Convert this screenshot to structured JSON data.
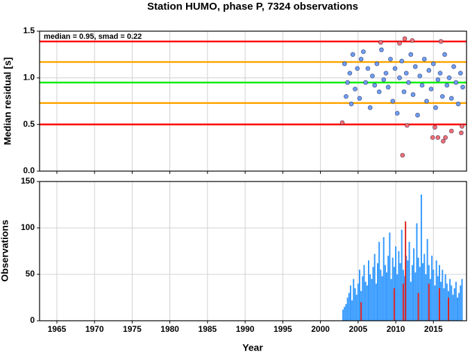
{
  "chart_data": [
    {
      "type": "scatter",
      "title": "Station HUMO, phase P, 7324 observations",
      "ylabel": "Median residual [s]",
      "annotation": "median = 0.95, smad = 0.22",
      "xlim": [
        1962.7,
        2019.4
      ],
      "ylim": [
        0,
        1.5
      ],
      "yticks": [
        {
          "value": 0,
          "label": "0.0"
        },
        {
          "value": 0.5,
          "label": "0.5"
        },
        {
          "value": 1.0,
          "label": "1.0"
        },
        {
          "value": 1.5,
          "label": "1.5"
        }
      ],
      "grid": true,
      "hlines": [
        {
          "value": 1.39,
          "color": "#ff0000"
        },
        {
          "value": 1.17,
          "color": "#ffa500"
        },
        {
          "value": 0.95,
          "color": "#00ee00"
        },
        {
          "value": 0.73,
          "color": "#ffa500"
        },
        {
          "value": 0.5,
          "color": "#ff0000"
        }
      ],
      "series": [
        {
          "color": "#6f9ff2",
          "x": [
            2003.2,
            2003.4,
            2003.6,
            2003.9,
            2004.1,
            2004.3,
            2004.6,
            2004.9,
            2005.2,
            2005.4,
            2005.7,
            2006.0,
            2006.3,
            2006.6,
            2006.9,
            2007.2,
            2007.5,
            2007.8,
            2008.1,
            2008.4,
            2008.7,
            2009.0,
            2009.3,
            2009.6,
            2009.9,
            2010.2,
            2010.5,
            2010.8,
            2011.1,
            2011.4,
            2011.7,
            2012.0,
            2012.3,
            2012.6,
            2012.9,
            2013.2,
            2013.5,
            2013.8,
            2014.1,
            2014.4,
            2014.7,
            2015.0,
            2015.3,
            2015.6,
            2015.9,
            2016.2,
            2016.5,
            2016.8,
            2017.1,
            2017.4,
            2017.7,
            2018.0,
            2018.3,
            2018.6,
            2018.9
          ],
          "values": [
            1.15,
            0.8,
            0.95,
            1.05,
            0.72,
            1.25,
            0.88,
            1.1,
            0.78,
            1.2,
            1.28,
            0.95,
            1.1,
            0.68,
            1.02,
            0.92,
            1.15,
            0.85,
            1.3,
            0.98,
            1.05,
            0.9,
            1.2,
            0.75,
            1.1,
            0.62,
            1.0,
            1.18,
            0.85,
            1.05,
            0.95,
            1.25,
            0.82,
            1.12,
            0.6,
            1.02,
            0.92,
            1.2,
            0.75,
            1.08,
            0.88,
            1.15,
            0.68,
            0.98,
            1.05,
            0.8,
            1.25,
            0.92,
            1.0,
            0.78,
            1.12,
            0.95,
            0.72,
            1.05,
            0.9
          ]
        },
        {
          "color": "#f27070",
          "x": [
            2002.9,
            2008.0,
            2010.5,
            2010.9,
            2011.2,
            2011.5,
            2012.2,
            2014.9,
            2015.2,
            2015.6,
            2016.0,
            2016.3,
            2016.6,
            2017.4,
            2018.7,
            2018.8
          ],
          "values": [
            0.52,
            1.38,
            1.37,
            0.17,
            1.42,
            0.49,
            1.4,
            0.36,
            0.47,
            0.36,
            1.39,
            0.32,
            0.36,
            0.43,
            0.41,
            0.48
          ]
        }
      ]
    },
    {
      "type": "bar",
      "xlabel": "Year",
      "ylabel": "Observations",
      "xlim": [
        1962.7,
        2019.4
      ],
      "xticks": [
        1965,
        1970,
        1975,
        1980,
        1985,
        1990,
        1995,
        2000,
        2005,
        2010,
        2015
      ],
      "ylim": [
        0,
        150
      ],
      "yticks": [
        0,
        50,
        100,
        150
      ],
      "grid": true,
      "series": [
        {
          "color": "#3399ff",
          "x": [
            2003.0,
            2003.2,
            2003.4,
            2003.6,
            2003.8,
            2004.0,
            2004.2,
            2004.4,
            2004.6,
            2004.8,
            2005.0,
            2005.2,
            2005.4,
            2005.6,
            2005.8,
            2006.0,
            2006.2,
            2006.4,
            2006.6,
            2006.8,
            2007.0,
            2007.2,
            2007.4,
            2007.6,
            2007.8,
            2008.0,
            2008.2,
            2008.4,
            2008.6,
            2008.8,
            2009.0,
            2009.2,
            2009.4,
            2009.6,
            2009.8,
            2010.0,
            2010.2,
            2010.4,
            2010.6,
            2010.8,
            2011.0,
            2011.2,
            2011.4,
            2011.6,
            2011.8,
            2012.0,
            2012.2,
            2012.4,
            2012.6,
            2012.8,
            2013.0,
            2013.2,
            2013.4,
            2013.6,
            2013.8,
            2014.0,
            2014.2,
            2014.4,
            2014.6,
            2014.8,
            2015.0,
            2015.2,
            2015.4,
            2015.6,
            2015.8,
            2016.0,
            2016.2,
            2016.4,
            2016.6,
            2016.8,
            2017.0,
            2017.2,
            2017.4,
            2017.6,
            2017.8,
            2018.0,
            2018.2,
            2018.4,
            2018.6,
            2018.8
          ],
          "values": [
            12,
            15,
            18,
            25,
            30,
            38,
            22,
            45,
            35,
            28,
            40,
            55,
            32,
            48,
            60,
            42,
            38,
            65,
            50,
            45,
            58,
            72,
            40,
            62,
            85,
            55,
            48,
            90,
            60,
            52,
            70,
            95,
            45,
            68,
            58,
            80,
            50,
            75,
            62,
            98,
            55,
            48,
            70,
            65,
            85,
            42,
            60,
            78,
            52,
            105,
            68,
            58,
            136,
            62,
            72,
            50,
            88,
            60,
            45,
            70,
            55,
            38,
            65,
            48,
            60,
            42,
            55,
            35,
            50,
            40,
            32,
            45,
            38,
            28,
            35,
            42,
            25,
            30,
            38,
            45
          ]
        },
        {
          "color": "#dd2222",
          "x": [
            2005.4,
            2009.8,
            2011.0,
            2011.3,
            2013.0,
            2014.4,
            2015.8,
            2017.0
          ],
          "values": [
            20,
            35,
            40,
            107,
            30,
            40,
            35,
            25
          ]
        }
      ]
    }
  ]
}
